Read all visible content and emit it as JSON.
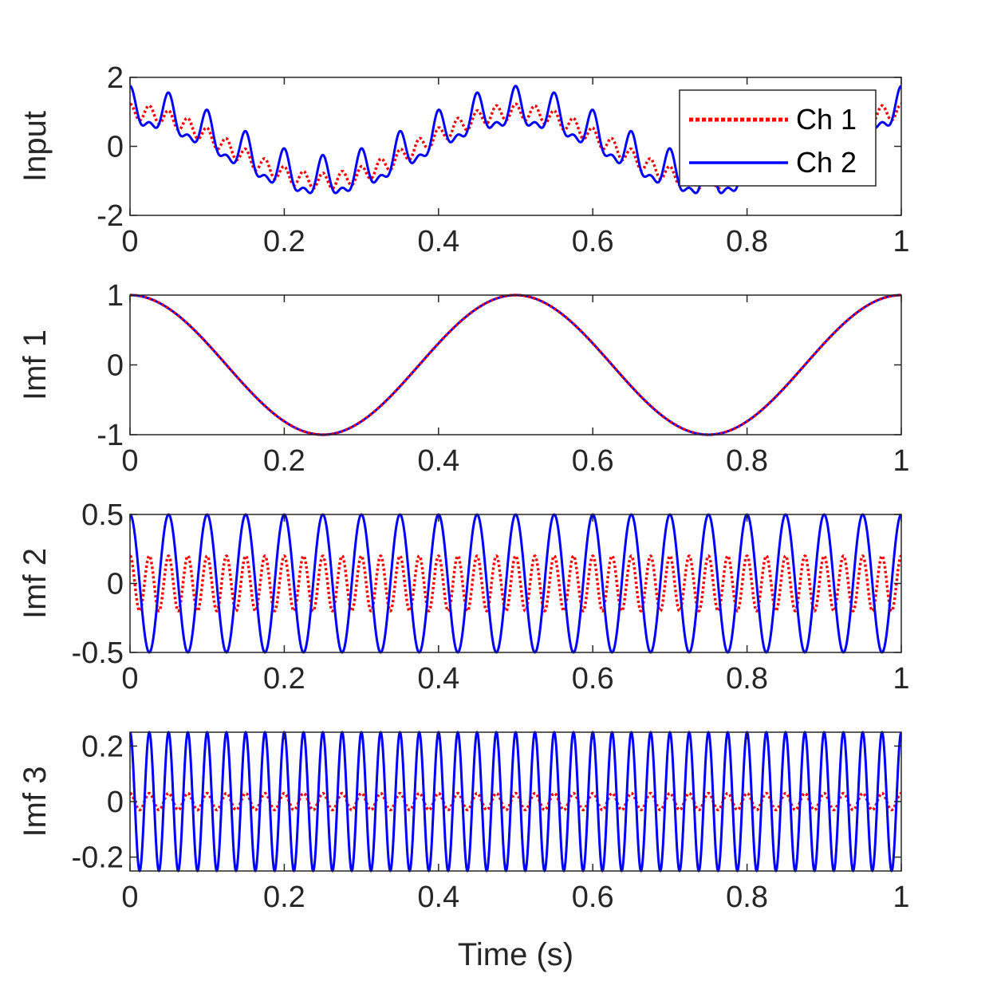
{
  "chart_data": [
    {
      "type": "line",
      "ylabel": "Input",
      "xlabel": "",
      "xlim": [
        0,
        1
      ],
      "ylim": [
        -2,
        2
      ],
      "xticks": [
        "0",
        "0.2",
        "0.4",
        "0.6",
        "0.8",
        "1"
      ],
      "yticks": [
        "-2",
        "0",
        "2"
      ],
      "ytick_values": [
        -2,
        0,
        2
      ],
      "legend": [
        "Ch 1",
        "Ch 2"
      ],
      "legend_position": "top-right",
      "series": [
        {
          "name": "Ch 1",
          "color": "#ff0000",
          "style": "dotted",
          "components": [
            {
              "amp": 1,
              "freq": 2
            },
            {
              "amp": 0.2,
              "freq": 40
            },
            {
              "amp": 0.03,
              "freq": 40
            }
          ]
        },
        {
          "name": "Ch 2",
          "color": "#0000ff",
          "style": "solid",
          "components": [
            {
              "amp": 1,
              "freq": 2
            },
            {
              "amp": 0.5,
              "freq": 20
            },
            {
              "amp": 0.25,
              "freq": 40
            }
          ]
        }
      ]
    },
    {
      "type": "line",
      "ylabel": "Imf 1",
      "xlabel": "",
      "xlim": [
        0,
        1
      ],
      "ylim": [
        -1,
        1
      ],
      "xticks": [
        "0",
        "0.2",
        "0.4",
        "0.6",
        "0.8",
        "1"
      ],
      "yticks": [
        "-1",
        "0",
        "1"
      ],
      "ytick_values": [
        -1,
        0,
        1
      ],
      "series": [
        {
          "name": "Ch 2",
          "color": "#0000ff",
          "style": "solid",
          "components": [
            {
              "amp": 1,
              "freq": 2
            }
          ]
        },
        {
          "name": "Ch 1",
          "color": "#ff0000",
          "style": "dotted",
          "components": [
            {
              "amp": 1,
              "freq": 2
            }
          ]
        }
      ]
    },
    {
      "type": "line",
      "ylabel": "Imf 2",
      "xlabel": "",
      "xlim": [
        0,
        1
      ],
      "ylim": [
        -0.5,
        0.5
      ],
      "xticks": [
        "0",
        "0.2",
        "0.4",
        "0.6",
        "0.8",
        "1"
      ],
      "yticks": [
        "-0.5",
        "0",
        "0.5"
      ],
      "ytick_values": [
        -0.5,
        0,
        0.5
      ],
      "series": [
        {
          "name": "Ch 1",
          "color": "#ff0000",
          "style": "dotted",
          "components": [
            {
              "amp": 0.2,
              "freq": 40
            }
          ]
        },
        {
          "name": "Ch 2",
          "color": "#0000ff",
          "style": "solid",
          "components": [
            {
              "amp": 0.5,
              "freq": 20
            }
          ]
        }
      ]
    },
    {
      "type": "line",
      "ylabel": "Imf 3",
      "xlabel": "Time (s)",
      "xlim": [
        0,
        1
      ],
      "ylim": [
        -0.25,
        0.25
      ],
      "xticks": [
        "0",
        "0.2",
        "0.4",
        "0.6",
        "0.8",
        "1"
      ],
      "yticks": [
        "-0.2",
        "0",
        "0.2"
      ],
      "ytick_values": [
        -0.2,
        0,
        0.2
      ],
      "series": [
        {
          "name": "Ch 1",
          "color": "#ff0000",
          "style": "dotted",
          "components": [
            {
              "amp": 0.03,
              "freq": 40
            }
          ]
        },
        {
          "name": "Ch 2",
          "color": "#0000ff",
          "style": "solid",
          "components": [
            {
              "amp": 0.25,
              "freq": 40
            }
          ]
        }
      ]
    }
  ]
}
